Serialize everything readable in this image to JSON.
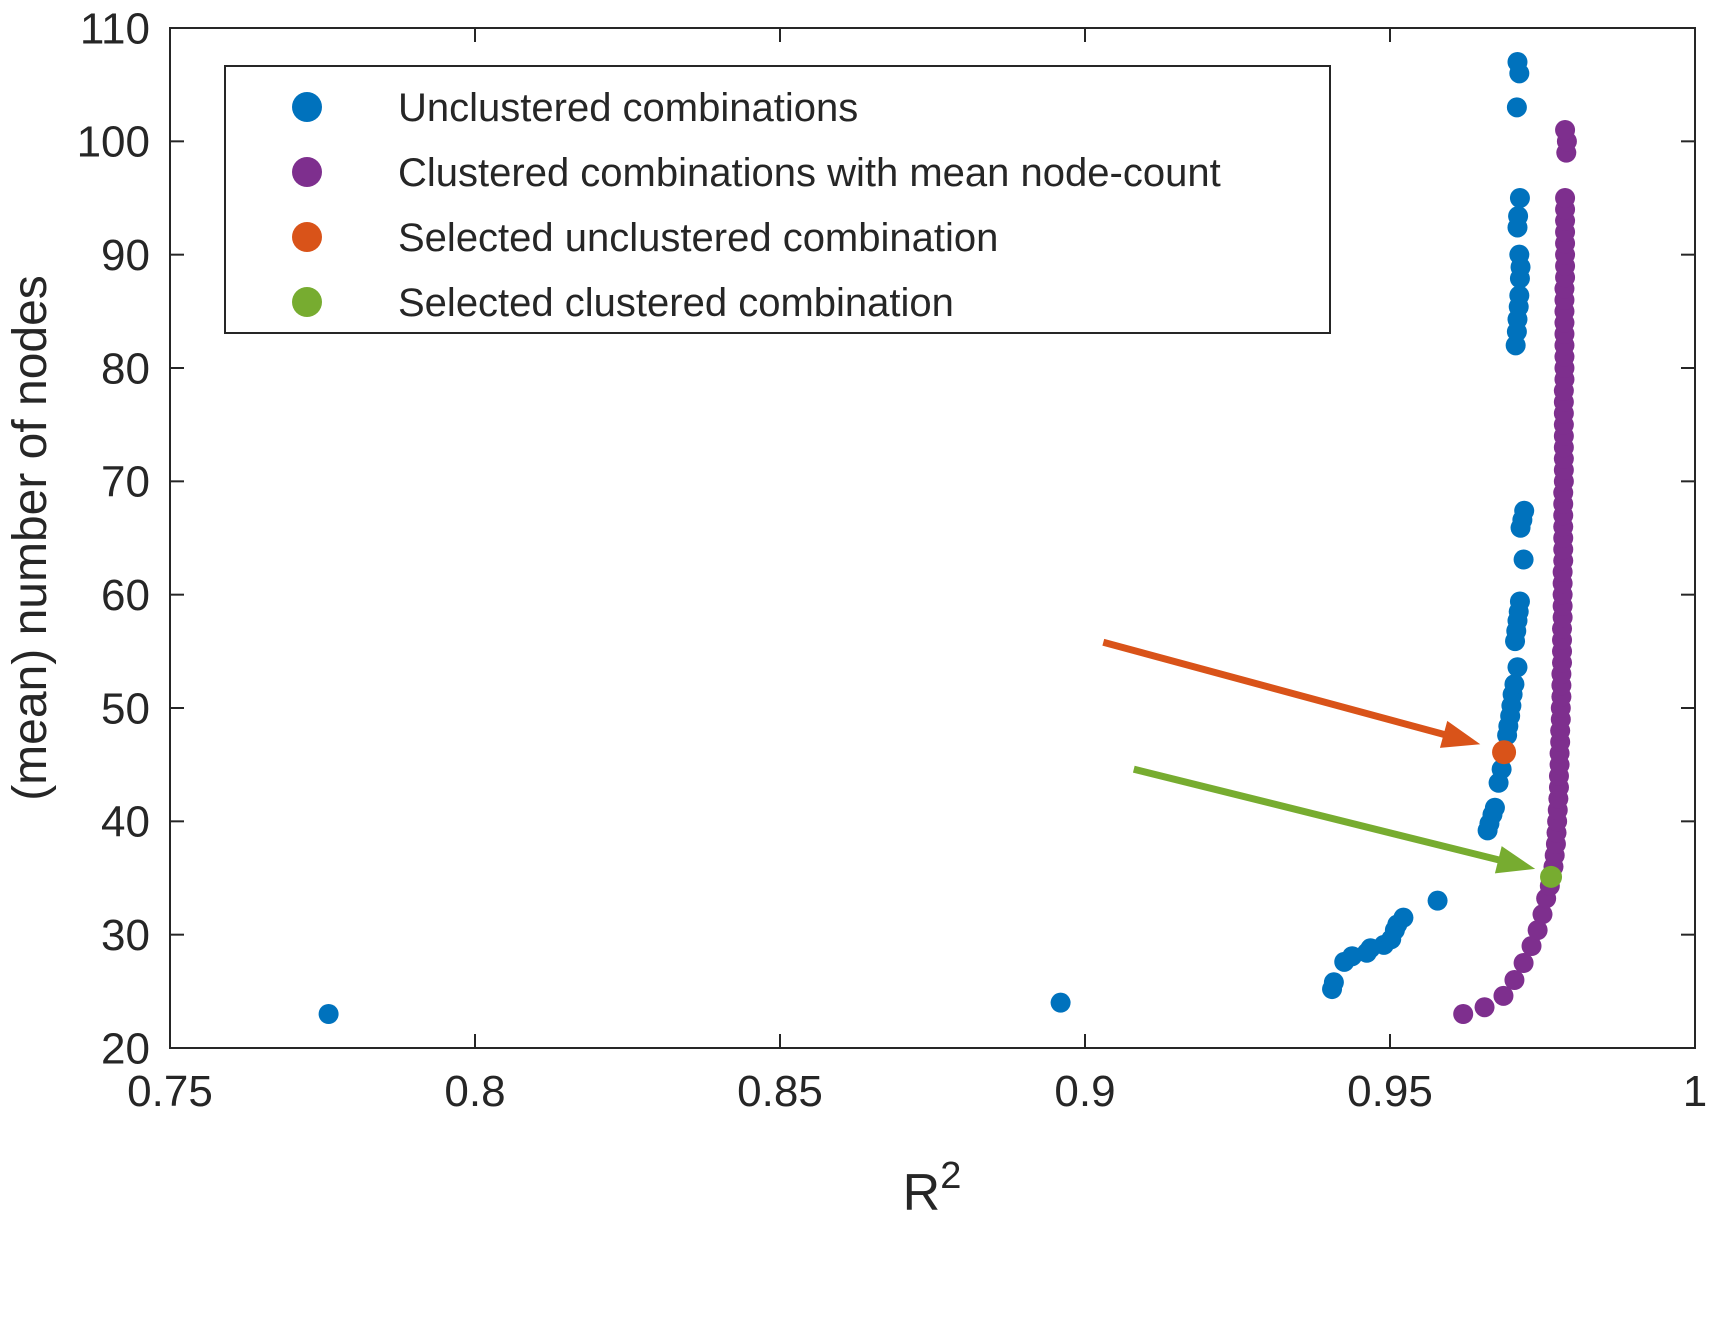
{
  "figure": {
    "background": "#ffffff"
  },
  "chart_data": {
    "type": "scatter",
    "title": "",
    "xlabel_base": "R",
    "xlabel_sup": "2",
    "ylabel": "(mean) number of nodes",
    "xlim": [
      0.75,
      1
    ],
    "ylim": [
      20,
      110
    ],
    "xticks": [
      0.75,
      0.8,
      0.85,
      0.9,
      0.95,
      1
    ],
    "xtick_labels": [
      "0.75",
      "0.8",
      "0.85",
      "0.9",
      "0.95",
      "1"
    ],
    "yticks": [
      20,
      30,
      40,
      50,
      60,
      70,
      80,
      90,
      100,
      110
    ],
    "ytick_labels": [
      "20",
      "30",
      "40",
      "50",
      "60",
      "70",
      "80",
      "90",
      "100",
      "110"
    ],
    "grid": false,
    "legend_position": "top-left",
    "axis_color": "#262626",
    "series": [
      {
        "name": "Unclustered combinations",
        "color": "#0072BD",
        "marker_radius": 10,
        "points": [
          [
            0.776,
            23.0
          ],
          [
            0.896,
            24.0
          ],
          [
            0.9405,
            25.2
          ],
          [
            0.9408,
            25.8
          ],
          [
            0.9425,
            27.6
          ],
          [
            0.9438,
            28.1
          ],
          [
            0.9462,
            28.4
          ],
          [
            0.9468,
            28.8
          ],
          [
            0.949,
            29.1
          ],
          [
            0.9502,
            29.6
          ],
          [
            0.9508,
            30.4
          ],
          [
            0.9512,
            30.9
          ],
          [
            0.9522,
            31.5
          ],
          [
            0.9578,
            33.0
          ],
          [
            0.966,
            39.2
          ],
          [
            0.9663,
            39.8
          ],
          [
            0.9668,
            40.6
          ],
          [
            0.9672,
            41.2
          ],
          [
            0.9678,
            43.4
          ],
          [
            0.9683,
            44.6
          ],
          [
            0.9692,
            47.6
          ],
          [
            0.9694,
            48.4
          ],
          [
            0.9697,
            49.3
          ],
          [
            0.9699,
            50.2
          ],
          [
            0.9701,
            51.2
          ],
          [
            0.9704,
            52.1
          ],
          [
            0.9709,
            53.6
          ],
          [
            0.9705,
            55.9
          ],
          [
            0.9707,
            56.8
          ],
          [
            0.9709,
            57.7
          ],
          [
            0.9711,
            58.5
          ],
          [
            0.9713,
            59.4
          ],
          [
            0.9719,
            63.1
          ],
          [
            0.9714,
            65.9
          ],
          [
            0.9717,
            66.6
          ],
          [
            0.972,
            67.4
          ],
          [
            0.9706,
            82.0
          ],
          [
            0.9708,
            83.2
          ],
          [
            0.9709,
            84.3
          ],
          [
            0.9711,
            85.4
          ],
          [
            0.9712,
            86.4
          ],
          [
            0.9713,
            87.9
          ],
          [
            0.9714,
            88.9
          ],
          [
            0.9712,
            90.0
          ],
          [
            0.9709,
            92.4
          ],
          [
            0.971,
            93.4
          ],
          [
            0.9713,
            95.0
          ],
          [
            0.9708,
            103.0
          ],
          [
            0.9712,
            106.0
          ],
          [
            0.9709,
            107.0
          ]
        ]
      },
      {
        "name": "Clustered combinations with mean node-count",
        "color": "#7E2F8E",
        "marker_radius": 10,
        "points": [
          [
            0.962,
            23.0
          ],
          [
            0.9655,
            23.6
          ],
          [
            0.9686,
            24.6
          ],
          [
            0.9704,
            26.0
          ],
          [
            0.9719,
            27.5
          ],
          [
            0.9732,
            29.0
          ],
          [
            0.9742,
            30.4
          ],
          [
            0.975,
            31.8
          ],
          [
            0.9756,
            33.2
          ],
          [
            0.9762,
            34.3
          ],
          [
            0.9768,
            36
          ],
          [
            0.977,
            37
          ],
          [
            0.9772,
            38
          ],
          [
            0.9773,
            39
          ],
          [
            0.9774,
            40
          ],
          [
            0.9775,
            41
          ],
          [
            0.9776,
            42
          ],
          [
            0.9777,
            43
          ],
          [
            0.9777,
            44
          ],
          [
            0.9778,
            45
          ],
          [
            0.9778,
            46
          ],
          [
            0.9779,
            47
          ],
          [
            0.9779,
            48
          ],
          [
            0.978,
            49
          ],
          [
            0.978,
            50
          ],
          [
            0.9781,
            51
          ],
          [
            0.9781,
            52
          ],
          [
            0.9781,
            53
          ],
          [
            0.9782,
            54
          ],
          [
            0.9782,
            55
          ],
          [
            0.9782,
            56
          ],
          [
            0.9782,
            57
          ],
          [
            0.9783,
            58
          ],
          [
            0.9783,
            59
          ],
          [
            0.9783,
            60
          ],
          [
            0.9783,
            61
          ],
          [
            0.9783,
            62
          ],
          [
            0.9784,
            63
          ],
          [
            0.9784,
            64
          ],
          [
            0.9784,
            65
          ],
          [
            0.9784,
            66
          ],
          [
            0.9784,
            67
          ],
          [
            0.9784,
            68
          ],
          [
            0.9784,
            69
          ],
          [
            0.9785,
            70
          ],
          [
            0.9785,
            71
          ],
          [
            0.9785,
            72
          ],
          [
            0.9785,
            73
          ],
          [
            0.9785,
            74
          ],
          [
            0.9785,
            75
          ],
          [
            0.9785,
            76
          ],
          [
            0.9785,
            77
          ],
          [
            0.9785,
            78
          ],
          [
            0.9786,
            79
          ],
          [
            0.9786,
            80
          ],
          [
            0.9786,
            81
          ],
          [
            0.9786,
            82
          ],
          [
            0.9786,
            83
          ],
          [
            0.9786,
            84
          ],
          [
            0.9786,
            85
          ],
          [
            0.9786,
            86
          ],
          [
            0.9786,
            87
          ],
          [
            0.9787,
            88
          ],
          [
            0.9787,
            89
          ],
          [
            0.9787,
            90
          ],
          [
            0.9787,
            91
          ],
          [
            0.9787,
            92
          ],
          [
            0.9787,
            93
          ],
          [
            0.9787,
            94
          ],
          [
            0.9787,
            95
          ],
          [
            0.9789,
            99.0
          ],
          [
            0.979,
            100.0
          ],
          [
            0.9787,
            101.0
          ]
        ]
      },
      {
        "name": "Selected unclustered combination",
        "color": "#D95319",
        "marker_radius": 12,
        "points": [
          [
            0.9687,
            46.1
          ]
        ]
      },
      {
        "name": "Selected clustered combination",
        "color": "#77AC30",
        "marker_radius": 11,
        "points": [
          [
            0.9764,
            35.1
          ]
        ]
      }
    ],
    "annotations": [
      {
        "type": "arrow",
        "name": "arrow-to-selected-unclustered",
        "color": "#D95319",
        "from": [
          0.903,
          55.8
        ],
        "to": [
          0.9648,
          46.8
        ]
      },
      {
        "type": "arrow",
        "name": "arrow-to-selected-clustered",
        "color": "#77AC30",
        "from": [
          0.908,
          44.6
        ],
        "to": [
          0.9738,
          35.8
        ]
      }
    ]
  }
}
